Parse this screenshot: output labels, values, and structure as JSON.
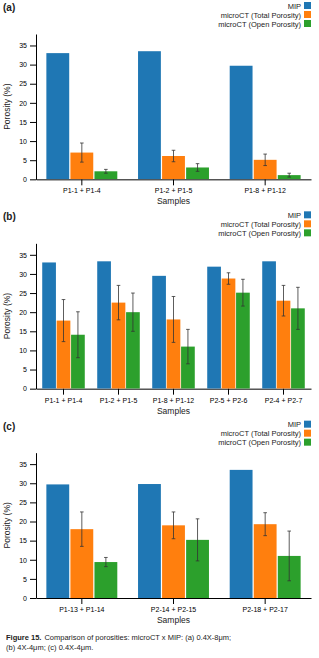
{
  "chart_data": [
    {
      "type": "bar",
      "title": "(a)",
      "categories": [
        "P1-1 + P1-4",
        "P1-2 + P1-5",
        "P1-8 + P1-12"
      ],
      "series": [
        {
          "name": "MIP",
          "values": [
            33.0,
            33.5,
            29.7
          ]
        },
        {
          "name": "microCT (Total Porosity)",
          "values": [
            7.0,
            6.1,
            5.1
          ],
          "errors": [
            2.5,
            1.5,
            1.5
          ]
        },
        {
          "name": "microCT (Open Porosity)",
          "values": [
            2.1,
            3.1,
            1.1
          ],
          "errors": [
            0.5,
            1.0,
            0.5
          ]
        }
      ],
      "xlabel": "Samples",
      "ylabel": "Porosity (%)",
      "ylim": [
        0,
        38
      ],
      "yticks": [
        0,
        5,
        10,
        15,
        20,
        25,
        30,
        35
      ],
      "grid": false,
      "legend": "upper right"
    },
    {
      "type": "bar",
      "title": "(b)",
      "categories": [
        "P1-1 + P1-4",
        "P1-2 + P1-5",
        "P1-8 + P1-12",
        "P2-5 + P2-6",
        "P2-4 + P2-7"
      ],
      "series": [
        {
          "name": "MIP",
          "values": [
            33.0,
            33.3,
            29.5,
            31.9,
            33.3
          ]
        },
        {
          "name": "microCT (Total Porosity)",
          "values": [
            17.8,
            22.5,
            18.1,
            28.8,
            23.0
          ],
          "errors": [
            5.5,
            4.5,
            6.0,
            1.5,
            4.0
          ]
        },
        {
          "name": "microCT (Open Porosity)",
          "values": [
            14.1,
            20.0,
            11.0,
            25.1,
            21.0
          ],
          "errors": [
            6.0,
            5.0,
            4.5,
            3.5,
            5.5
          ]
        }
      ],
      "xlabel": "Samples",
      "ylabel": "Porosity (%)",
      "ylim": [
        0,
        38
      ],
      "yticks": [
        0,
        5,
        10,
        15,
        20,
        25,
        30,
        35
      ],
      "grid": false,
      "legend": "upper right"
    },
    {
      "type": "bar",
      "title": "(c)",
      "categories": [
        "P1-13 + P1-14",
        "P2-14 + P2-15",
        "P2-18 + P2-17"
      ],
      "series": [
        {
          "name": "MIP",
          "values": [
            29.7,
            29.8,
            33.5
          ]
        },
        {
          "name": "microCT (Total Porosity)",
          "values": [
            18.0,
            19.0,
            19.3
          ],
          "errors": [
            4.5,
            3.5,
            3.0
          ]
        },
        {
          "name": "microCT (Open Porosity)",
          "values": [
            9.4,
            15.2,
            11.0
          ],
          "errors": [
            1.2,
            5.5,
            6.5
          ]
        }
      ],
      "xlabel": "Samples",
      "ylabel": "Porosity (%)",
      "ylim": [
        0,
        38
      ],
      "yticks": [
        0,
        5,
        10,
        15,
        20,
        25,
        30,
        35
      ],
      "grid": false,
      "legend": "upper right",
      "annotations": [
        "Figure 15.",
        "Comparison of porosities: microCT x MIP: (a) 0.4X-8μm;",
        "(b) 4X-4μm; (c) 0.4X-4μm."
      ]
    }
  ]
}
